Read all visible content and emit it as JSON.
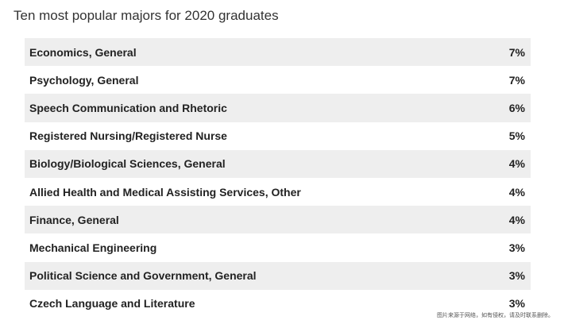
{
  "chart_data": {
    "type": "table",
    "title": "Ten most popular majors for 2020 graduates",
    "rows": [
      {
        "label": "Economics, General",
        "value": "7%"
      },
      {
        "label": "Psychology, General",
        "value": "7%"
      },
      {
        "label": "Speech Communication and Rhetoric",
        "value": "6%"
      },
      {
        "label": "Registered Nursing/Registered Nurse",
        "value": "5%"
      },
      {
        "label": "Biology/Biological Sciences, General",
        "value": "4%"
      },
      {
        "label": "Allied Health and Medical Assisting Services, Other",
        "value": "4%"
      },
      {
        "label": "Finance, General",
        "value": "4%"
      },
      {
        "label": "Mechanical Engineering",
        "value": "3%"
      },
      {
        "label": "Political Science and Government, General",
        "value": "3%"
      },
      {
        "label": "Czech Language and Literature",
        "value": "3%"
      }
    ],
    "colors": {
      "band": "#eeeeee",
      "text": "#222222"
    }
  },
  "watermark": "图片来源于网络，如有侵权，请及时联系删除。"
}
